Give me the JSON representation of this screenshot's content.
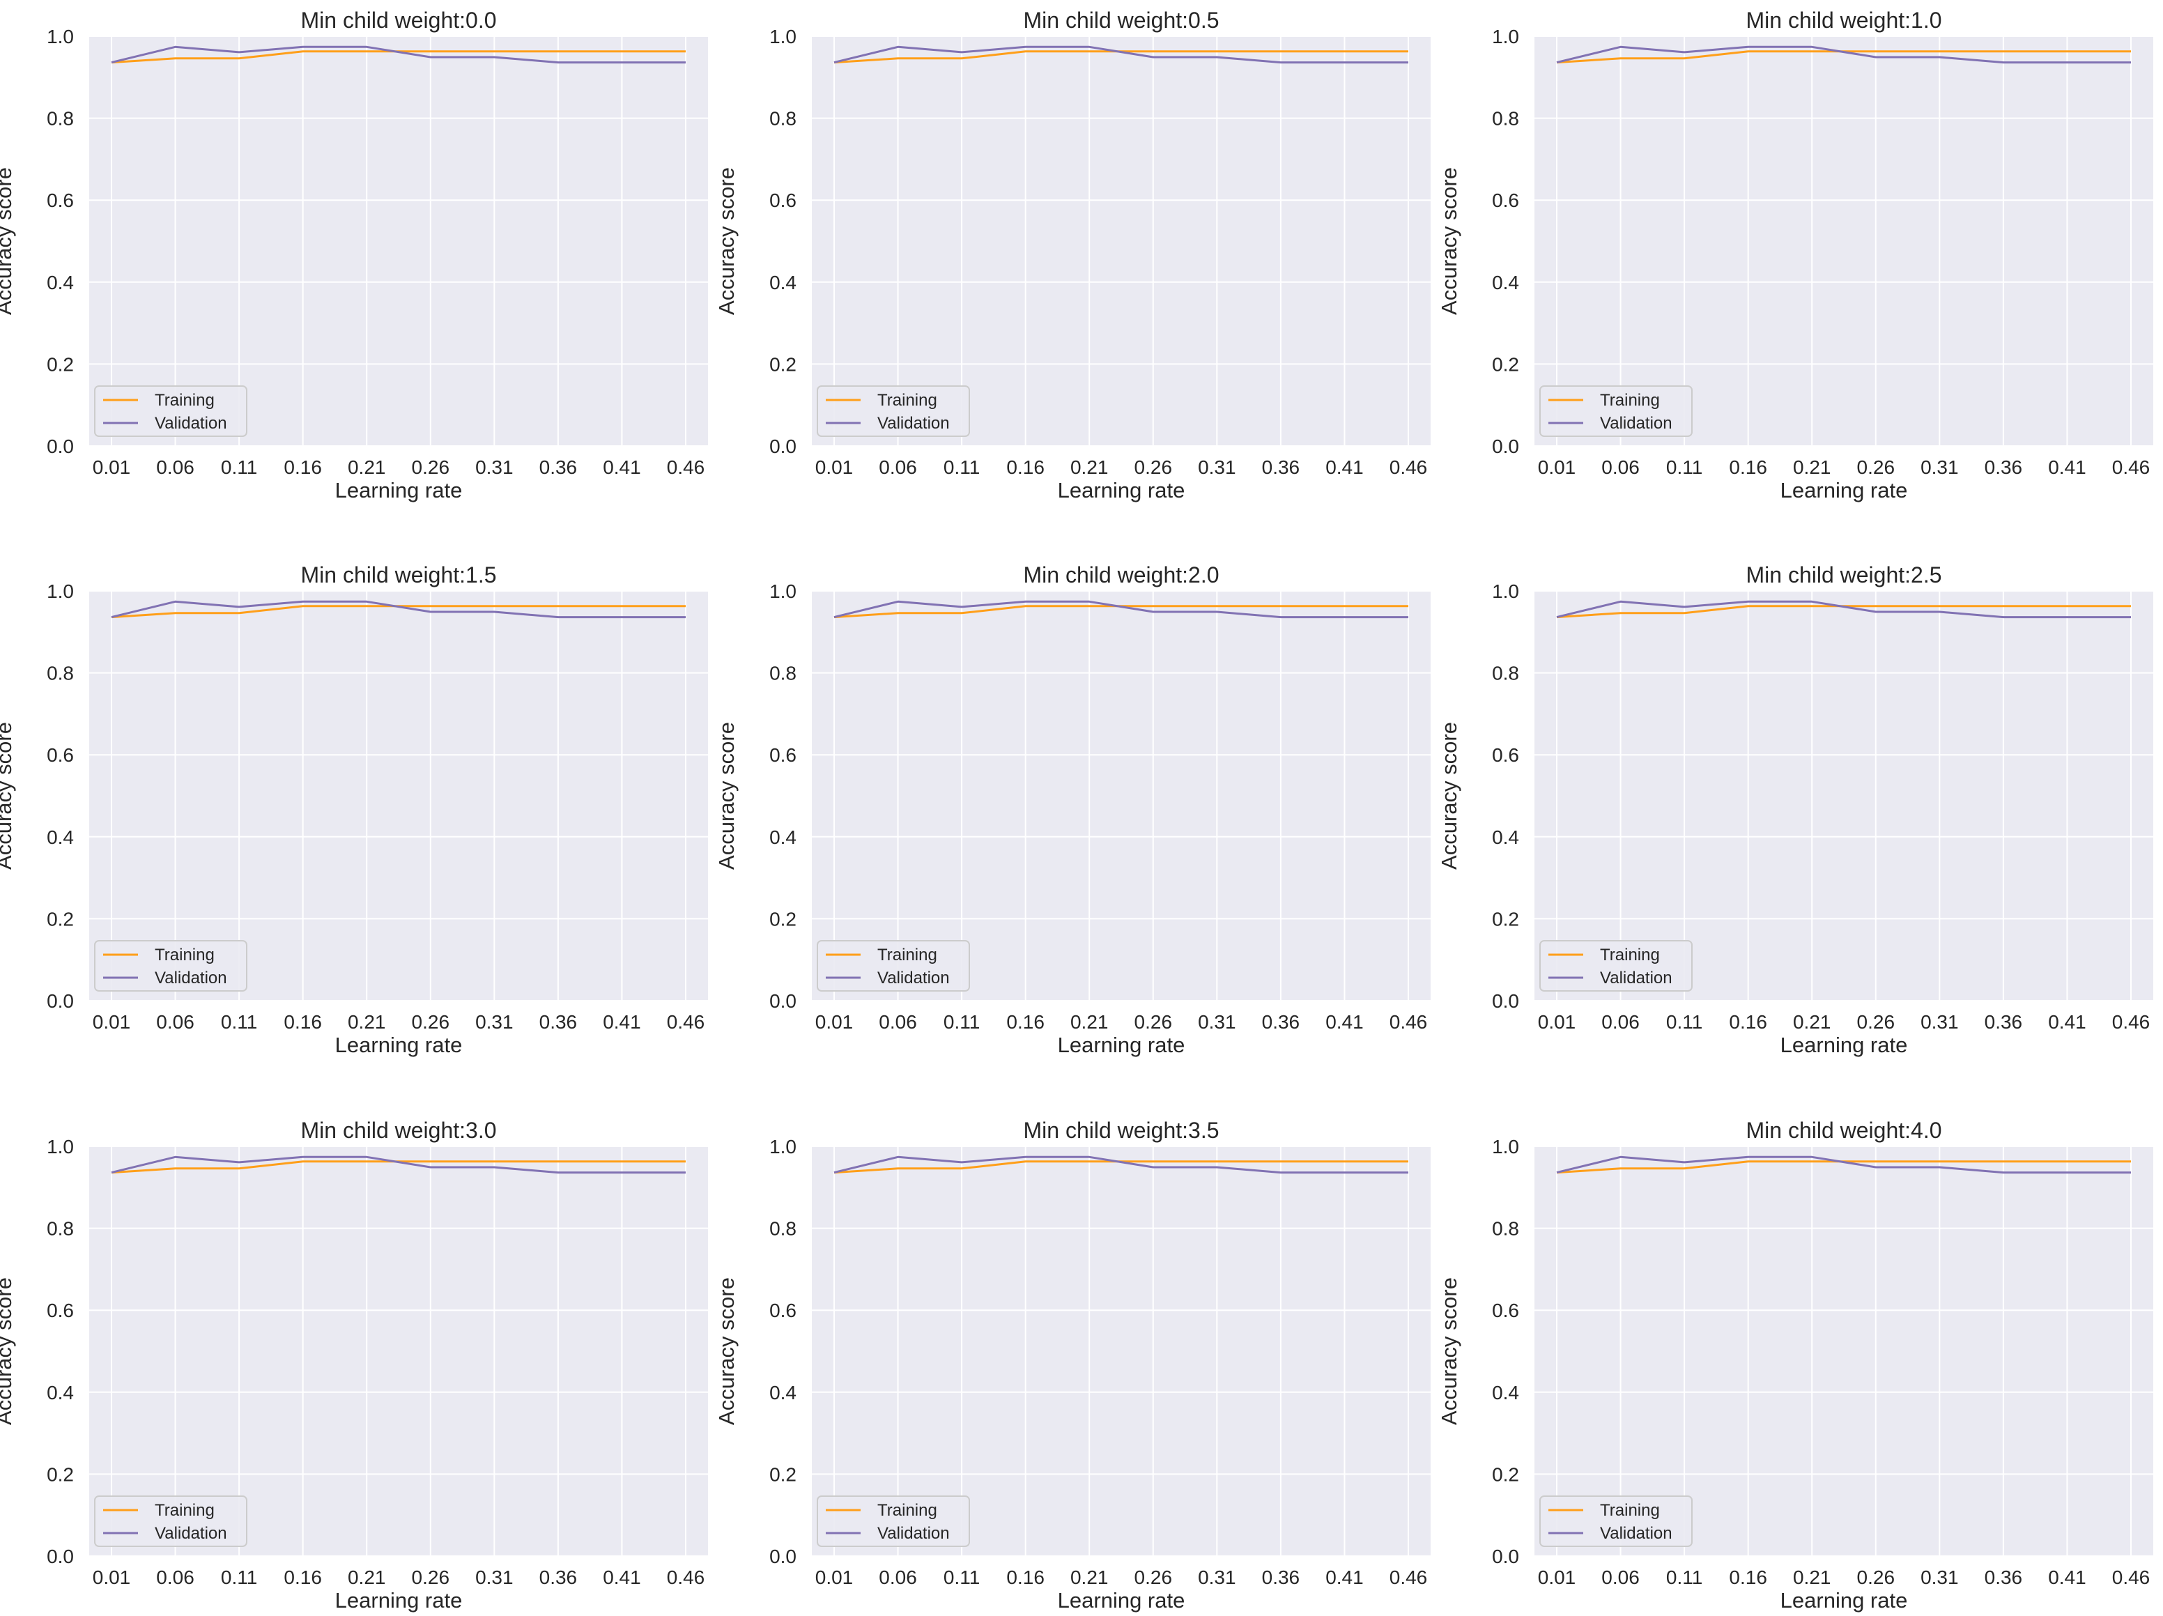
{
  "figure": {
    "background": "#ffffff",
    "axes_facecolor": "#eaeaf2",
    "grid_color": "#ffffff"
  },
  "chart_data": [
    {
      "type": "line",
      "title": "Min child weight:0.0",
      "xlabel": "Learning rate",
      "ylabel": "Accuracy score",
      "ylim": [
        0.0,
        1.0
      ],
      "yticks": [
        "0.0",
        "0.2",
        "0.4",
        "0.6",
        "0.8",
        "1.0"
      ],
      "categories": [
        "0.01",
        "0.06",
        "0.11",
        "0.16",
        "0.21",
        "0.26",
        "0.31",
        "0.36",
        "0.41",
        "0.46"
      ],
      "grid": true,
      "legend": "lower-left",
      "series": [
        {
          "name": "Training",
          "color": "#ff9f1a",
          "values": [
            0.936,
            0.946,
            0.946,
            0.963,
            0.963,
            0.963,
            0.963,
            0.963,
            0.963,
            0.963
          ]
        },
        {
          "name": "Validation",
          "color": "#8172b3",
          "values": [
            0.936,
            0.974,
            0.961,
            0.974,
            0.974,
            0.949,
            0.949,
            0.936,
            0.936,
            0.936
          ]
        }
      ]
    },
    {
      "type": "line",
      "title": "Min child weight:0.5",
      "xlabel": "Learning rate",
      "ylabel": "Accuracy score",
      "ylim": [
        0.0,
        1.0
      ],
      "yticks": [
        "0.0",
        "0.2",
        "0.4",
        "0.6",
        "0.8",
        "1.0"
      ],
      "categories": [
        "0.01",
        "0.06",
        "0.11",
        "0.16",
        "0.21",
        "0.26",
        "0.31",
        "0.36",
        "0.41",
        "0.46"
      ],
      "grid": true,
      "legend": "lower-left",
      "series": [
        {
          "name": "Training",
          "color": "#ff9f1a",
          "values": [
            0.936,
            0.946,
            0.946,
            0.963,
            0.963,
            0.963,
            0.963,
            0.963,
            0.963,
            0.963
          ]
        },
        {
          "name": "Validation",
          "color": "#8172b3",
          "values": [
            0.936,
            0.974,
            0.961,
            0.974,
            0.974,
            0.949,
            0.949,
            0.936,
            0.936,
            0.936
          ]
        }
      ]
    },
    {
      "type": "line",
      "title": "Min child weight:1.0",
      "xlabel": "Learning rate",
      "ylabel": "Accuracy score",
      "ylim": [
        0.0,
        1.0
      ],
      "yticks": [
        "0.0",
        "0.2",
        "0.4",
        "0.6",
        "0.8",
        "1.0"
      ],
      "categories": [
        "0.01",
        "0.06",
        "0.11",
        "0.16",
        "0.21",
        "0.26",
        "0.31",
        "0.36",
        "0.41",
        "0.46"
      ],
      "grid": true,
      "legend": "lower-left",
      "series": [
        {
          "name": "Training",
          "color": "#ff9f1a",
          "values": [
            0.936,
            0.946,
            0.946,
            0.963,
            0.963,
            0.963,
            0.963,
            0.963,
            0.963,
            0.963
          ]
        },
        {
          "name": "Validation",
          "color": "#8172b3",
          "values": [
            0.936,
            0.974,
            0.961,
            0.974,
            0.974,
            0.949,
            0.949,
            0.936,
            0.936,
            0.936
          ]
        }
      ]
    },
    {
      "type": "line",
      "title": "Min child weight:1.5",
      "xlabel": "Learning rate",
      "ylabel": "Accuracy score",
      "ylim": [
        0.0,
        1.0
      ],
      "yticks": [
        "0.0",
        "0.2",
        "0.4",
        "0.6",
        "0.8",
        "1.0"
      ],
      "categories": [
        "0.01",
        "0.06",
        "0.11",
        "0.16",
        "0.21",
        "0.26",
        "0.31",
        "0.36",
        "0.41",
        "0.46"
      ],
      "grid": true,
      "legend": "lower-left",
      "series": [
        {
          "name": "Training",
          "color": "#ff9f1a",
          "values": [
            0.936,
            0.946,
            0.946,
            0.963,
            0.963,
            0.963,
            0.963,
            0.963,
            0.963,
            0.963
          ]
        },
        {
          "name": "Validation",
          "color": "#8172b3",
          "values": [
            0.936,
            0.974,
            0.961,
            0.974,
            0.974,
            0.949,
            0.949,
            0.936,
            0.936,
            0.936
          ]
        }
      ]
    },
    {
      "type": "line",
      "title": "Min child weight:2.0",
      "xlabel": "Learning rate",
      "ylabel": "Accuracy score",
      "ylim": [
        0.0,
        1.0
      ],
      "yticks": [
        "0.0",
        "0.2",
        "0.4",
        "0.6",
        "0.8",
        "1.0"
      ],
      "categories": [
        "0.01",
        "0.06",
        "0.11",
        "0.16",
        "0.21",
        "0.26",
        "0.31",
        "0.36",
        "0.41",
        "0.46"
      ],
      "grid": true,
      "legend": "lower-left",
      "series": [
        {
          "name": "Training",
          "color": "#ff9f1a",
          "values": [
            0.936,
            0.946,
            0.946,
            0.963,
            0.963,
            0.963,
            0.963,
            0.963,
            0.963,
            0.963
          ]
        },
        {
          "name": "Validation",
          "color": "#8172b3",
          "values": [
            0.936,
            0.974,
            0.961,
            0.974,
            0.974,
            0.949,
            0.949,
            0.936,
            0.936,
            0.936
          ]
        }
      ]
    },
    {
      "type": "line",
      "title": "Min child weight:2.5",
      "xlabel": "Learning rate",
      "ylabel": "Accuracy score",
      "ylim": [
        0.0,
        1.0
      ],
      "yticks": [
        "0.0",
        "0.2",
        "0.4",
        "0.6",
        "0.8",
        "1.0"
      ],
      "categories": [
        "0.01",
        "0.06",
        "0.11",
        "0.16",
        "0.21",
        "0.26",
        "0.31",
        "0.36",
        "0.41",
        "0.46"
      ],
      "grid": true,
      "legend": "lower-left",
      "series": [
        {
          "name": "Training",
          "color": "#ff9f1a",
          "values": [
            0.936,
            0.946,
            0.946,
            0.963,
            0.963,
            0.963,
            0.963,
            0.963,
            0.963,
            0.963
          ]
        },
        {
          "name": "Validation",
          "color": "#8172b3",
          "values": [
            0.936,
            0.974,
            0.961,
            0.974,
            0.974,
            0.949,
            0.949,
            0.936,
            0.936,
            0.936
          ]
        }
      ]
    },
    {
      "type": "line",
      "title": "Min child weight:3.0",
      "xlabel": "Learning rate",
      "ylabel": "Accuracy score",
      "ylim": [
        0.0,
        1.0
      ],
      "yticks": [
        "0.0",
        "0.2",
        "0.4",
        "0.6",
        "0.8",
        "1.0"
      ],
      "categories": [
        "0.01",
        "0.06",
        "0.11",
        "0.16",
        "0.21",
        "0.26",
        "0.31",
        "0.36",
        "0.41",
        "0.46"
      ],
      "grid": true,
      "legend": "lower-left",
      "series": [
        {
          "name": "Training",
          "color": "#ff9f1a",
          "values": [
            0.936,
            0.946,
            0.946,
            0.963,
            0.963,
            0.963,
            0.963,
            0.963,
            0.963,
            0.963
          ]
        },
        {
          "name": "Validation",
          "color": "#8172b3",
          "values": [
            0.936,
            0.974,
            0.961,
            0.974,
            0.974,
            0.949,
            0.949,
            0.936,
            0.936,
            0.936
          ]
        }
      ]
    },
    {
      "type": "line",
      "title": "Min child weight:3.5",
      "xlabel": "Learning rate",
      "ylabel": "Accuracy score",
      "ylim": [
        0.0,
        1.0
      ],
      "yticks": [
        "0.0",
        "0.2",
        "0.4",
        "0.6",
        "0.8",
        "1.0"
      ],
      "categories": [
        "0.01",
        "0.06",
        "0.11",
        "0.16",
        "0.21",
        "0.26",
        "0.31",
        "0.36",
        "0.41",
        "0.46"
      ],
      "grid": true,
      "legend": "lower-left",
      "series": [
        {
          "name": "Training",
          "color": "#ff9f1a",
          "values": [
            0.936,
            0.946,
            0.946,
            0.963,
            0.963,
            0.963,
            0.963,
            0.963,
            0.963,
            0.963
          ]
        },
        {
          "name": "Validation",
          "color": "#8172b3",
          "values": [
            0.936,
            0.974,
            0.961,
            0.974,
            0.974,
            0.949,
            0.949,
            0.936,
            0.936,
            0.936
          ]
        }
      ]
    },
    {
      "type": "line",
      "title": "Min child weight:4.0",
      "xlabel": "Learning rate",
      "ylabel": "Accuracy score",
      "ylim": [
        0.0,
        1.0
      ],
      "yticks": [
        "0.0",
        "0.2",
        "0.4",
        "0.6",
        "0.8",
        "1.0"
      ],
      "categories": [
        "0.01",
        "0.06",
        "0.11",
        "0.16",
        "0.21",
        "0.26",
        "0.31",
        "0.36",
        "0.41",
        "0.46"
      ],
      "grid": true,
      "legend": "lower-left",
      "series": [
        {
          "name": "Training",
          "color": "#ff9f1a",
          "values": [
            0.936,
            0.946,
            0.946,
            0.963,
            0.963,
            0.963,
            0.963,
            0.963,
            0.963,
            0.963
          ]
        },
        {
          "name": "Validation",
          "color": "#8172b3",
          "values": [
            0.936,
            0.974,
            0.961,
            0.974,
            0.974,
            0.949,
            0.949,
            0.936,
            0.936,
            0.936
          ]
        }
      ]
    }
  ]
}
